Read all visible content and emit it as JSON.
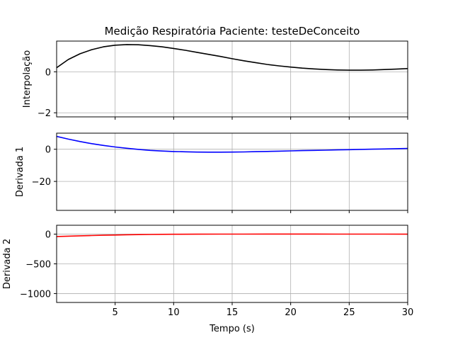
{
  "chart_data": [
    {
      "type": "line",
      "title": "Medição Respiratória Paciente: testeDeConceito",
      "xlabel": "",
      "ylabel": "Interpolação",
      "xlim": [
        0,
        30
      ],
      "ylim": [
        -2.2,
        1.5
      ],
      "xticks": [
        5,
        10,
        15,
        20,
        25,
        30
      ],
      "show_xtick_labels": false,
      "yticks": [
        -2,
        0
      ],
      "ytick_labels": [
        "−2",
        "0"
      ],
      "grid": true,
      "series": [
        {
          "color": "#000000",
          "x": [
            0,
            1,
            2,
            3,
            4,
            5,
            6,
            7,
            8,
            9,
            10,
            11,
            12,
            13,
            14,
            15,
            16,
            17,
            18,
            19,
            20,
            21,
            22,
            23,
            24,
            25,
            26,
            27,
            28,
            29,
            30
          ],
          "y": [
            0.2,
            0.6,
            0.88,
            1.08,
            1.22,
            1.3,
            1.33,
            1.32,
            1.28,
            1.22,
            1.14,
            1.05,
            0.95,
            0.85,
            0.75,
            0.64,
            0.54,
            0.45,
            0.36,
            0.29,
            0.23,
            0.18,
            0.14,
            0.11,
            0.09,
            0.08,
            0.08,
            0.09,
            0.11,
            0.13,
            0.16
          ]
        }
      ]
    },
    {
      "type": "line",
      "xlabel": "",
      "ylabel": "Derivada 1",
      "xlim": [
        0,
        30
      ],
      "ylim": [
        -38,
        10
      ],
      "xticks": [
        5,
        10,
        15,
        20,
        25,
        30
      ],
      "show_xtick_labels": false,
      "yticks": [
        -20,
        0
      ],
      "ytick_labels": [
        "−20",
        "0"
      ],
      "grid": true,
      "series": [
        {
          "color": "#0000ff",
          "x": [
            0,
            1,
            2,
            3,
            4,
            5,
            6,
            7,
            8,
            9,
            10,
            11,
            12,
            13,
            14,
            15,
            16,
            17,
            18,
            19,
            20,
            21,
            22,
            23,
            24,
            25,
            26,
            27,
            28,
            29,
            30
          ],
          "y": [
            8.0,
            6.3,
            4.8,
            3.5,
            2.4,
            1.4,
            0.6,
            -0.1,
            -0.7,
            -1.1,
            -1.4,
            -1.6,
            -1.75,
            -1.8,
            -1.8,
            -1.75,
            -1.65,
            -1.5,
            -1.35,
            -1.2,
            -1.0,
            -0.85,
            -0.7,
            -0.55,
            -0.4,
            -0.25,
            -0.1,
            0.05,
            0.2,
            0.35,
            0.5
          ]
        }
      ]
    },
    {
      "type": "line",
      "xlabel": "Tempo (s)",
      "ylabel": "Derivada 2",
      "xlim": [
        0,
        30
      ],
      "ylim": [
        -1150,
        150
      ],
      "xticks": [
        5,
        10,
        15,
        20,
        25,
        30
      ],
      "show_xtick_labels": true,
      "yticks": [
        -1000,
        -500,
        0
      ],
      "ytick_labels": [
        "−1000",
        "−500",
        "0"
      ],
      "grid": true,
      "series": [
        {
          "color": "#ff0000",
          "x": [
            0,
            1,
            2,
            3,
            4,
            5,
            6,
            7,
            8,
            9,
            10,
            12,
            14,
            16,
            18,
            20,
            22,
            24,
            26,
            28,
            30
          ],
          "y": [
            -40,
            -34,
            -28,
            -23,
            -18,
            -14,
            -10,
            -7,
            -5,
            -3,
            -2,
            0,
            1,
            1.5,
            2,
            2,
            2,
            1.5,
            1,
            0.5,
            0
          ]
        }
      ]
    }
  ]
}
